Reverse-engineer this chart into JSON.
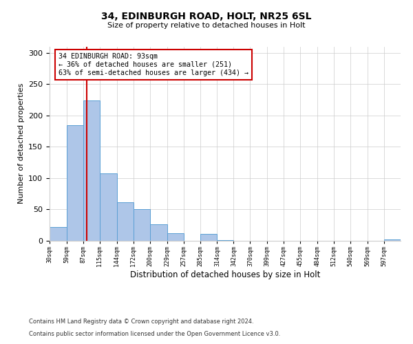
{
  "title": "34, EDINBURGH ROAD, HOLT, NR25 6SL",
  "subtitle": "Size of property relative to detached houses in Holt",
  "xlabel": "Distribution of detached houses by size in Holt",
  "ylabel": "Number of detached properties",
  "bin_labels": [
    "30sqm",
    "59sqm",
    "87sqm",
    "115sqm",
    "144sqm",
    "172sqm",
    "200sqm",
    "229sqm",
    "257sqm",
    "285sqm",
    "314sqm",
    "342sqm",
    "370sqm",
    "399sqm",
    "427sqm",
    "455sqm",
    "484sqm",
    "512sqm",
    "540sqm",
    "569sqm",
    "597sqm"
  ],
  "bar_values": [
    22,
    184,
    224,
    107,
    61,
    51,
    26,
    12,
    0,
    11,
    1,
    0,
    0,
    0,
    0,
    0,
    0,
    0,
    0,
    0,
    2
  ],
  "bar_color": "#aec6e8",
  "bar_edgecolor": "#5a9fd4",
  "vline_x": 93,
  "vline_color": "#cc0000",
  "annotation_lines": [
    "34 EDINBURGH ROAD: 93sqm",
    "← 36% of detached houses are smaller (251)",
    "63% of semi-detached houses are larger (434) →"
  ],
  "annotation_box_edgecolor": "#cc0000",
  "footnote1": "Contains HM Land Registry data © Crown copyright and database right 2024.",
  "footnote2": "Contains public sector information licensed under the Open Government Licence v3.0.",
  "ylim": [
    0,
    310
  ],
  "background_color": "#ffffff",
  "grid_color": "#cccccc",
  "label_values": [
    30,
    59,
    87,
    115,
    144,
    172,
    200,
    229,
    257,
    285,
    314,
    342,
    370,
    399,
    427,
    455,
    484,
    512,
    540,
    569,
    597
  ]
}
